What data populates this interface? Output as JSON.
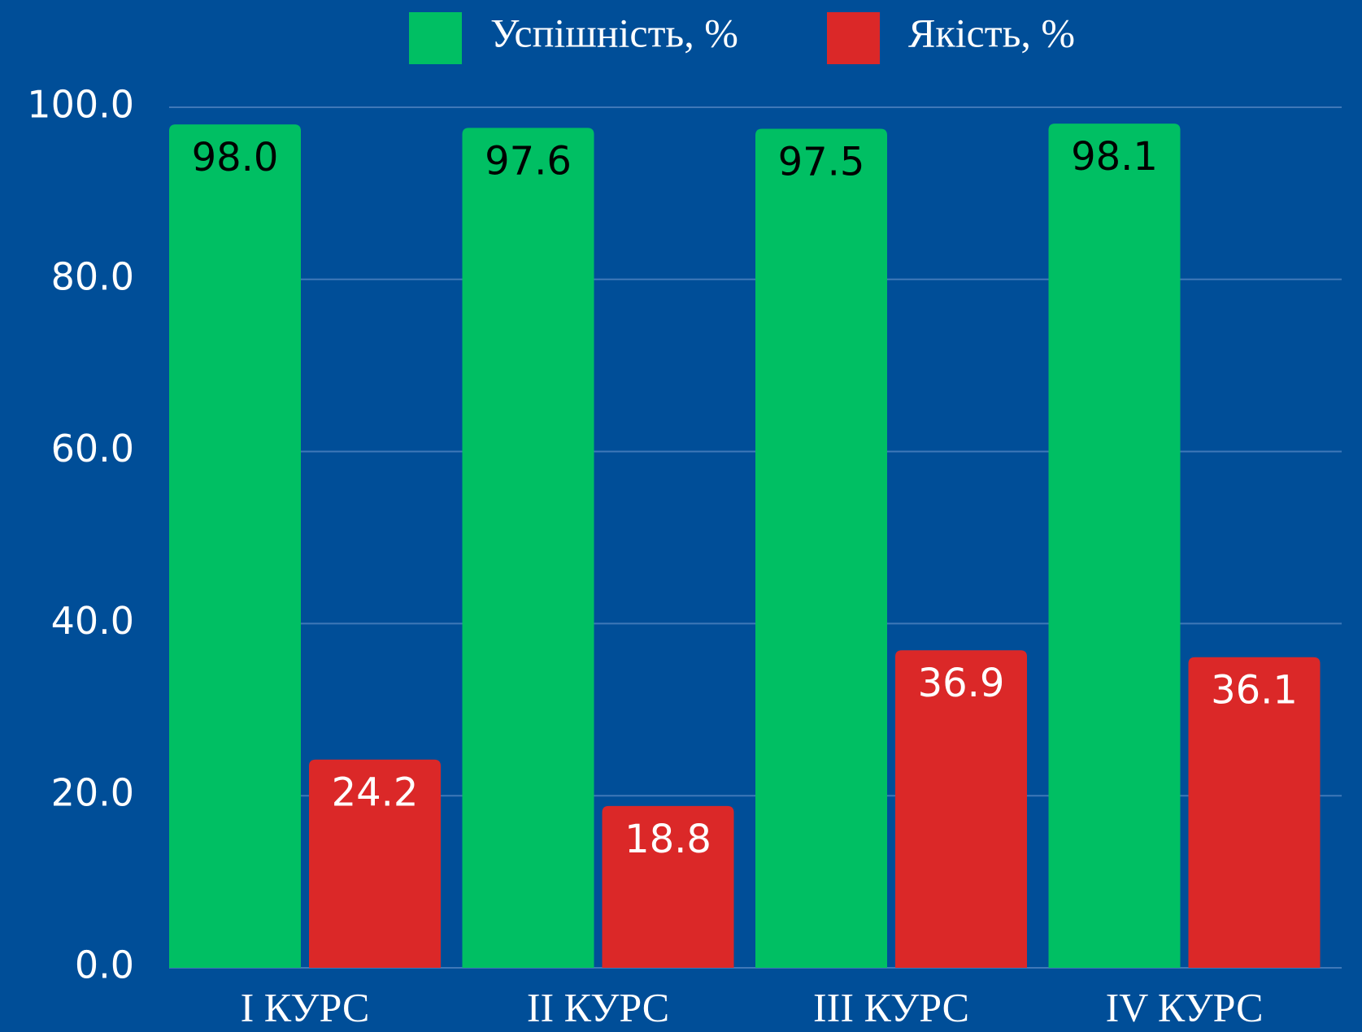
{
  "chart_data": {
    "type": "bar",
    "categories": [
      "I КУРС",
      "II КУРС",
      "III КУРС",
      "IV КУРС"
    ],
    "series": [
      {
        "name": "Успішність, %",
        "color": "#00bf63",
        "values": [
          98.0,
          97.6,
          97.5,
          98.1
        ],
        "value_labels": [
          "98.0",
          "97.6",
          "97.5",
          "98.1"
        ]
      },
      {
        "name": "Якість, %",
        "color": "#db2828",
        "values": [
          24.2,
          18.8,
          36.9,
          36.1
        ],
        "value_labels": [
          "24.2",
          "18.8",
          "36.9",
          "36.1"
        ]
      }
    ],
    "ylim": [
      0,
      100
    ],
    "yticks": [
      {
        "value": 0,
        "label": "0.0"
      },
      {
        "value": 20,
        "label": "20.0"
      },
      {
        "value": 40,
        "label": "40.0"
      },
      {
        "value": 60,
        "label": "60.0"
      },
      {
        "value": 80,
        "label": "80.0"
      },
      {
        "value": 100,
        "label": "100.0"
      }
    ],
    "grid": true,
    "legend": "top"
  }
}
